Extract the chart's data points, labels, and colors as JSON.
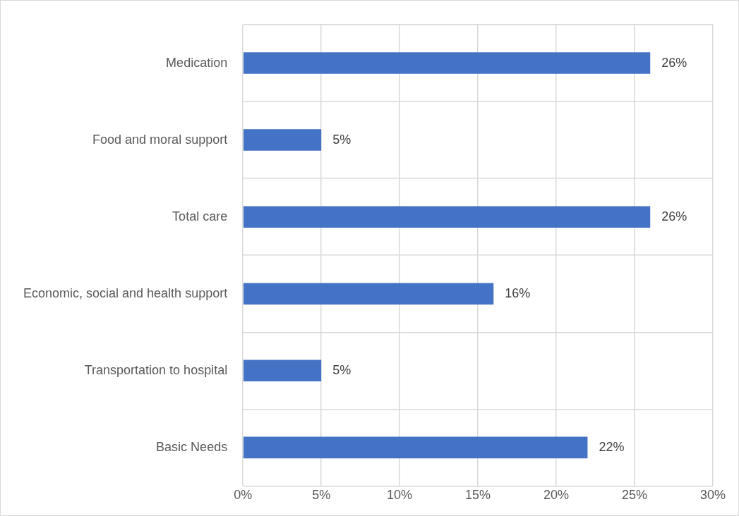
{
  "chart_data": {
    "type": "bar",
    "orientation": "horizontal",
    "categories": [
      "Medication",
      "Food and moral support",
      "Total care",
      "Economic, social and health support",
      "Transportation to hospital",
      "Basic Needs"
    ],
    "values": [
      26,
      5,
      26,
      16,
      5,
      22
    ],
    "value_labels": [
      "26%",
      "5%",
      "26%",
      "16%",
      "5%",
      "22%"
    ],
    "color": "#4472c4",
    "xlim": [
      0,
      30
    ],
    "xticks": [
      {
        "value": 0,
        "label": "0%"
      },
      {
        "value": 5,
        "label": "5%"
      },
      {
        "value": 10,
        "label": "10%"
      },
      {
        "value": 15,
        "label": "15%"
      },
      {
        "value": 20,
        "label": "20%"
      },
      {
        "value": 25,
        "label": "25%"
      },
      {
        "value": 30,
        "label": "30%"
      }
    ],
    "grid": true,
    "legend": false
  }
}
